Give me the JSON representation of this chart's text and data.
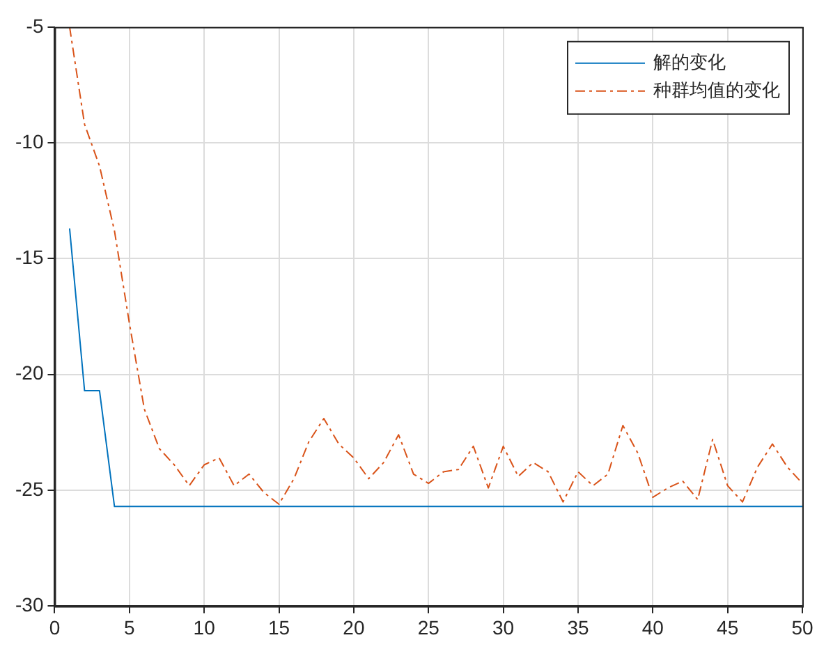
{
  "chart_data": {
    "type": "line",
    "x": [
      1,
      2,
      3,
      4,
      5,
      6,
      7,
      8,
      9,
      10,
      11,
      12,
      13,
      14,
      15,
      16,
      17,
      18,
      19,
      20,
      21,
      22,
      23,
      24,
      25,
      26,
      27,
      28,
      29,
      30,
      31,
      32,
      33,
      34,
      35,
      36,
      37,
      38,
      39,
      40,
      41,
      42,
      43,
      44,
      45,
      46,
      47,
      48,
      49,
      50
    ],
    "series": [
      {
        "name": "解的变化",
        "color": "#0072bd",
        "line_style": "solid",
        "values": [
          -13.7,
          -20.7,
          -20.7,
          -25.7,
          -25.7,
          -25.7,
          -25.7,
          -25.7,
          -25.7,
          -25.7,
          -25.7,
          -25.7,
          -25.7,
          -25.7,
          -25.7,
          -25.7,
          -25.7,
          -25.7,
          -25.7,
          -25.7,
          -25.7,
          -25.7,
          -25.7,
          -25.7,
          -25.7,
          -25.7,
          -25.7,
          -25.7,
          -25.7,
          -25.7,
          -25.7,
          -25.7,
          -25.7,
          -25.7,
          -25.7,
          -25.7,
          -25.7,
          -25.7,
          -25.7,
          -25.7,
          -25.7,
          -25.7,
          -25.7,
          -25.7,
          -25.7,
          -25.7,
          -25.7,
          -25.7,
          -25.7,
          -25.7
        ]
      },
      {
        "name": "种群均值的变化",
        "color": "#d95319",
        "line_style": "dashdot",
        "values": [
          -5.0,
          -9.2,
          -11.0,
          -13.8,
          -17.8,
          -21.5,
          -23.2,
          -23.9,
          -24.8,
          -23.9,
          -23.6,
          -24.8,
          -24.3,
          -25.1,
          -25.6,
          -24.5,
          -22.9,
          -21.9,
          -23.0,
          -23.6,
          -24.5,
          -23.8,
          -22.6,
          -24.3,
          -24.7,
          -24.2,
          -24.1,
          -23.1,
          -24.9,
          -23.1,
          -24.4,
          -23.8,
          -24.2,
          -25.5,
          -24.2,
          -24.8,
          -24.3,
          -22.2,
          -23.4,
          -25.3,
          -24.9,
          -24.6,
          -25.4,
          -22.8,
          -24.8,
          -25.5,
          -24.0,
          -23.0,
          -24.0,
          -24.7
        ]
      }
    ],
    "xlim": [
      0,
      50
    ],
    "xticks": [
      0,
      5,
      10,
      15,
      20,
      25,
      30,
      35,
      40,
      45,
      50
    ],
    "ylim": [
      -30,
      -5
    ],
    "yticks": [
      -30,
      -25,
      -20,
      -15,
      -10,
      -5
    ],
    "grid": true,
    "legend": "top right",
    "marker": "none"
  }
}
